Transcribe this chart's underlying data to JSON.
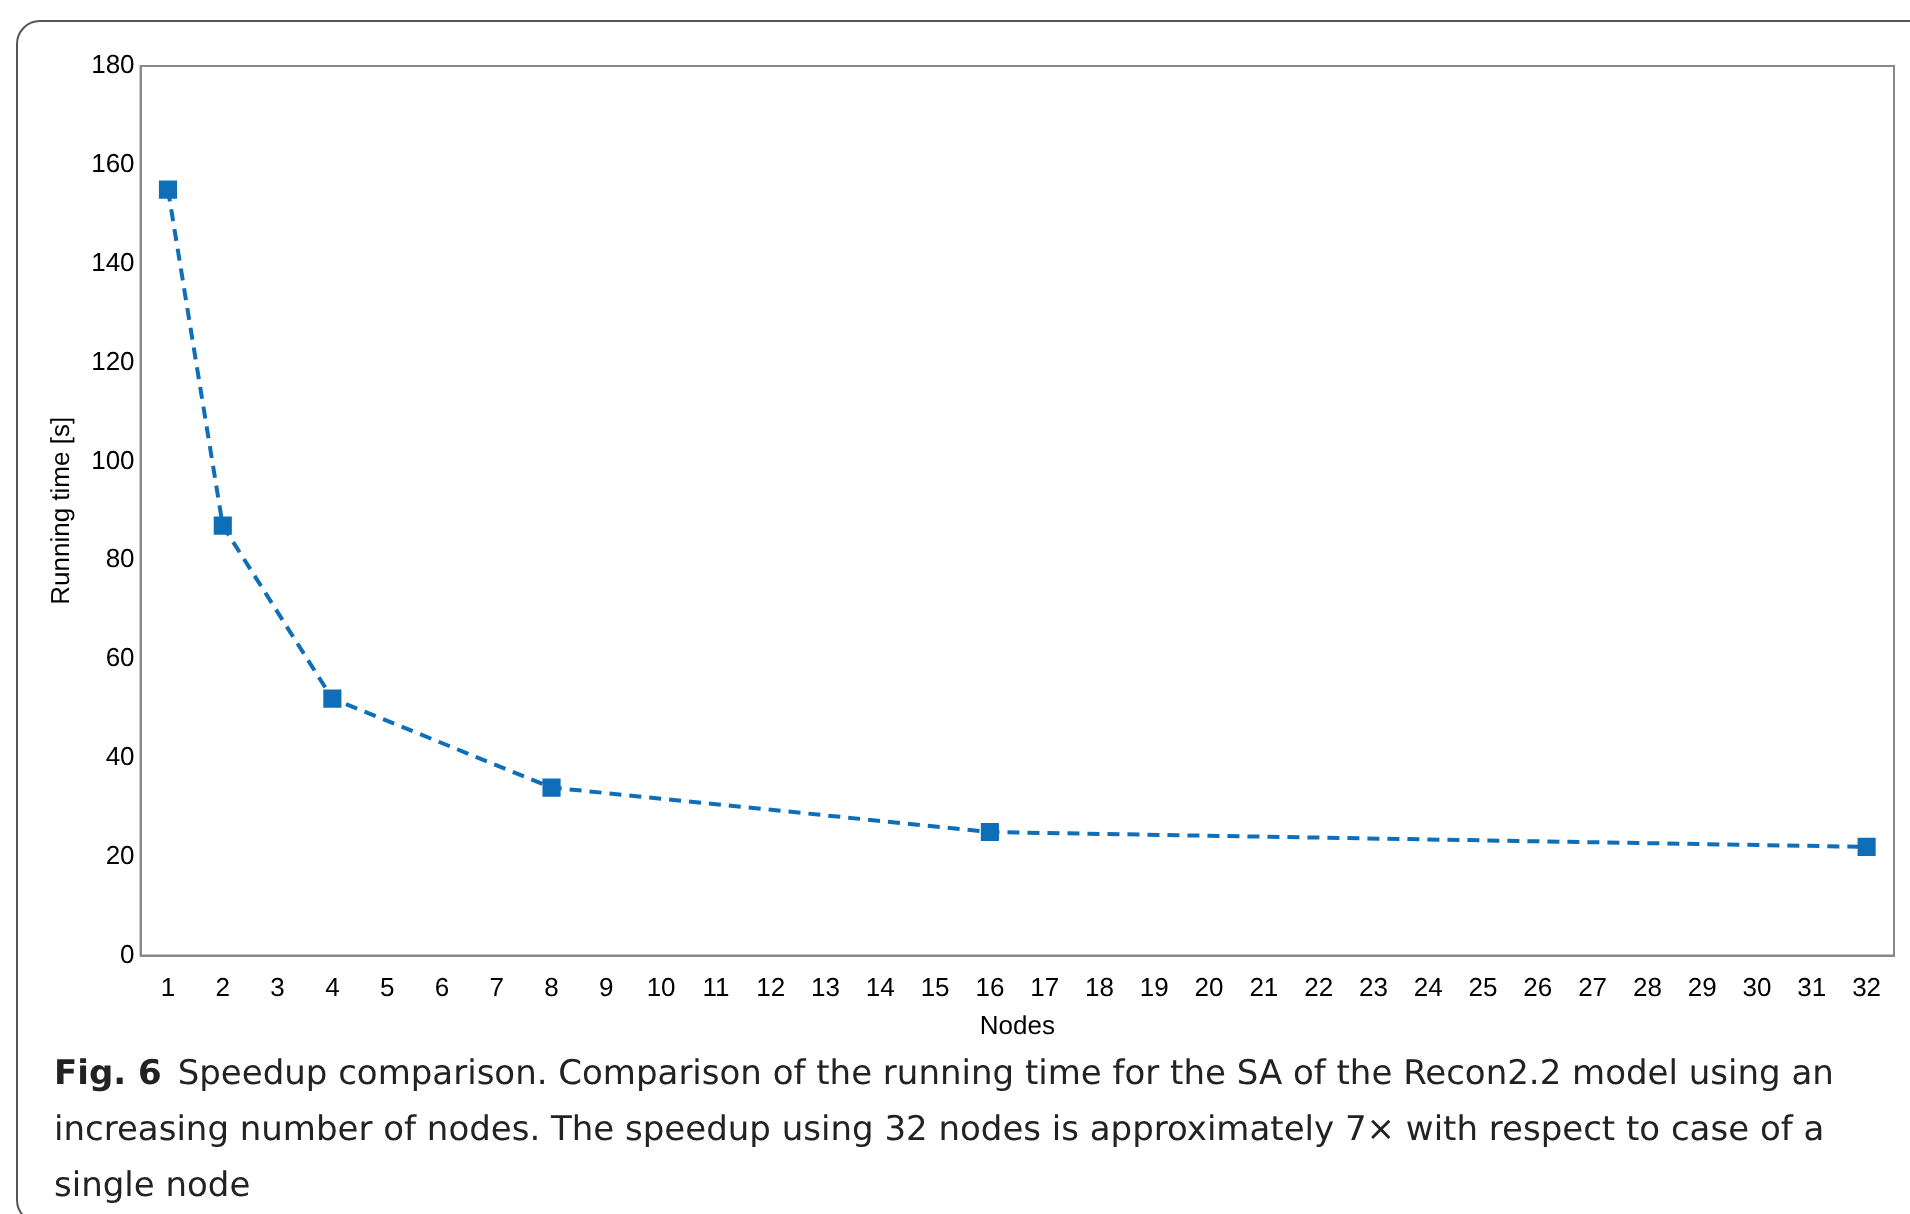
{
  "chart_data": {
    "type": "line",
    "xlabel": "Nodes",
    "ylabel": "Running time [s]",
    "x": [
      1,
      2,
      4,
      8,
      16,
      32
    ],
    "series": [
      {
        "color": "#0e6eb8",
        "values": [
          155,
          87,
          52,
          34,
          25,
          22
        ]
      }
    ],
    "xlim": [
      0.5,
      32.5
    ],
    "xticks": [
      1,
      2,
      3,
      4,
      5,
      6,
      7,
      8,
      9,
      10,
      11,
      12,
      13,
      14,
      15,
      16,
      17,
      18,
      19,
      20,
      21,
      22,
      23,
      24,
      25,
      26,
      27,
      28,
      29,
      30,
      31,
      32
    ],
    "ylim": [
      0,
      180
    ],
    "yticks": [
      0,
      20,
      40,
      60,
      80,
      100,
      120,
      140,
      160,
      180
    ],
    "grid": false,
    "legend": false,
    "marker": "square",
    "line_style": "dashed",
    "annotations": [
      "Fig. 6",
      "Speedup comparison. Comparison of the running time for the SA of the Recon2.2 model using an increasing number of nodes. The speedup using 32 nodes is approximately 7× with respect to case of a single node"
    ]
  }
}
